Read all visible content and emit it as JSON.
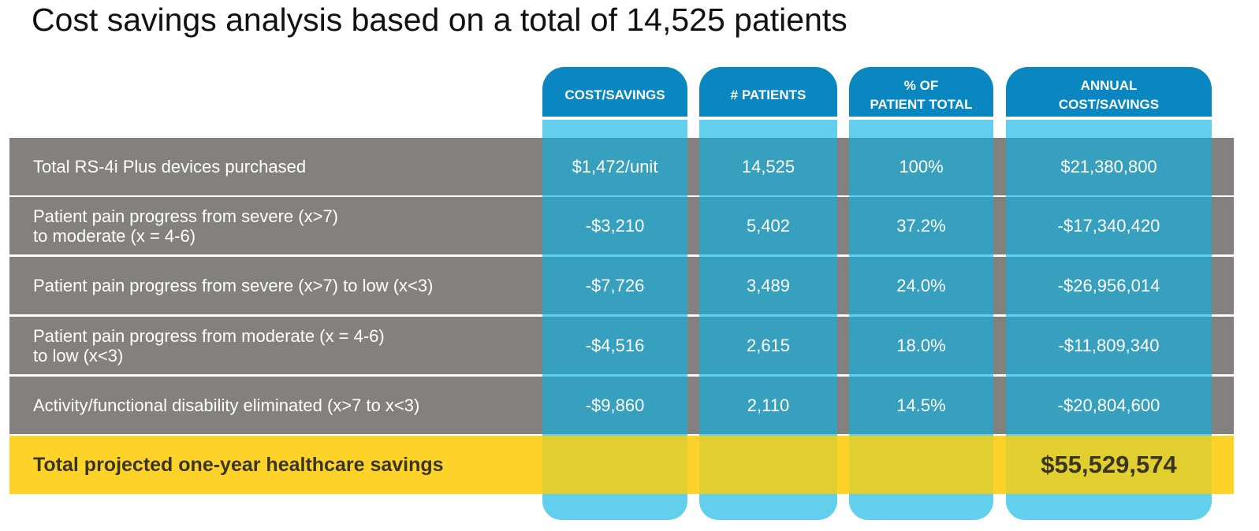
{
  "title": "Cost savings analysis based on a total of 14,525 patients",
  "colors": {
    "header": "#0a86c1",
    "column": "#62d0ec",
    "row": "#858080",
    "total": "#fdd32a"
  },
  "columns": [
    "COST/SAVINGS",
    "# PATIENTS",
    "% OF\nPATIENT TOTAL",
    "ANNUAL\nCOST/SAVINGS"
  ],
  "rows": [
    {
      "label": "Total RS-4i Plus devices purchased",
      "values": [
        "$1,472/unit",
        "14,525",
        "100%",
        "$21,380,800"
      ]
    },
    {
      "label": "Patient pain progress from severe (x>7)\nto moderate (x = 4-6)",
      "values": [
        "-$3,210",
        "5,402",
        "37.2%",
        "-$17,340,420"
      ]
    },
    {
      "label": "Patient pain progress from severe (x>7) to low (x<3)",
      "values": [
        "-$7,726",
        "3,489",
        "24.0%",
        "-$26,956,014"
      ]
    },
    {
      "label": "Patient pain progress from moderate (x = 4-6)\nto low (x<3)",
      "values": [
        "-$4,516",
        "2,615",
        "18.0%",
        "-$11,809,340"
      ]
    },
    {
      "label": "Activity/functional disability eliminated (x>7 to x<3)",
      "values": [
        "-$9,860",
        "2,110",
        "14.5%",
        "-$20,804,600"
      ]
    }
  ],
  "total": {
    "label": "Total projected one-year healthcare savings",
    "value": "$55,529,574"
  }
}
